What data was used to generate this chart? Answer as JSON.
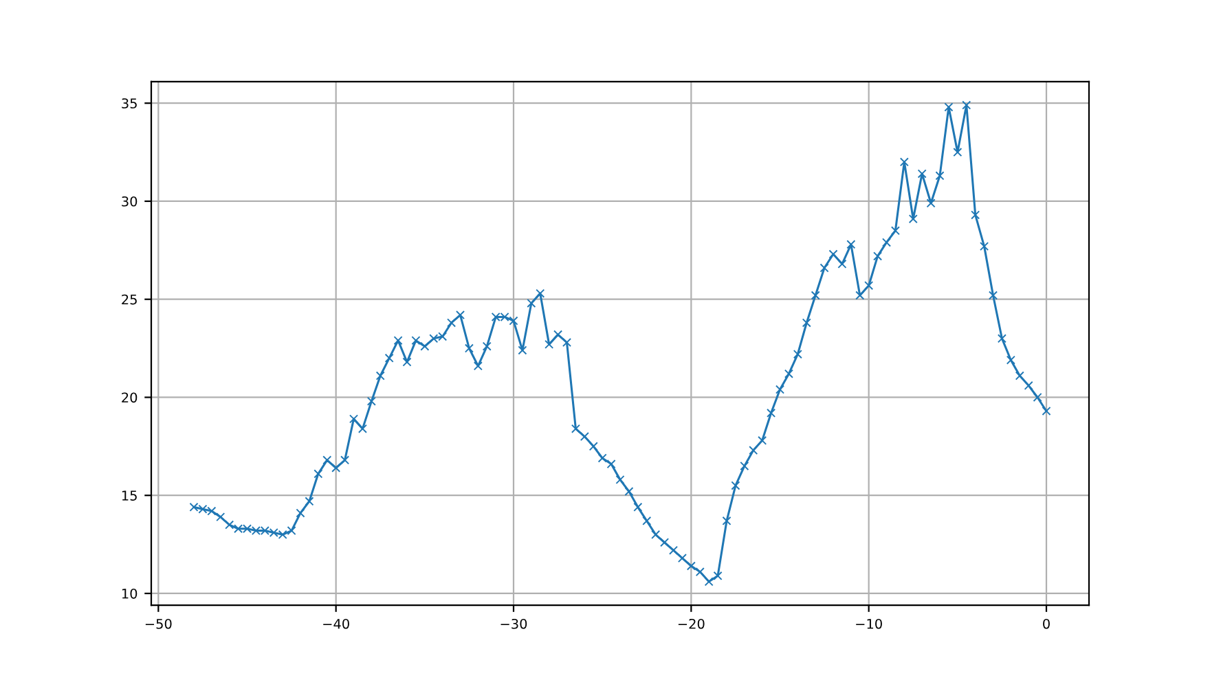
{
  "chart_data": {
    "type": "line",
    "x": [
      -48,
      -47.5,
      -47,
      -46.5,
      -46,
      -45.5,
      -45,
      -44.5,
      -44,
      -43.5,
      -43,
      -42.5,
      -42,
      -41.5,
      -41,
      -40.5,
      -40,
      -39.5,
      -39,
      -38.5,
      -38,
      -37.5,
      -37,
      -36.5,
      -36,
      -35.5,
      -35,
      -34.5,
      -34,
      -33.5,
      -33,
      -32.5,
      -32,
      -31.5,
      -31,
      -30.5,
      -30,
      -29.5,
      -29,
      -28.5,
      -28,
      -27.5,
      -27,
      -26.5,
      -26,
      -25.5,
      -25,
      -24.5,
      -24,
      -23.5,
      -23,
      -22.5,
      -22,
      -21.5,
      -21,
      -20.5,
      -20,
      -19.5,
      -19,
      -18.5,
      -18,
      -17.5,
      -17,
      -16.5,
      -16,
      -15.5,
      -15,
      -14.5,
      -14,
      -13.5,
      -13,
      -12.5,
      -12,
      -11.5,
      -11,
      -10.5,
      -10,
      -9.5,
      -9,
      -8.5,
      -8,
      -7.5,
      -7,
      -6.5,
      -6,
      -5.5,
      -5,
      -4.5,
      -4,
      -3.5,
      -3,
      -2.5,
      -2,
      -1.5,
      -1,
      -0.5,
      0
    ],
    "series": [
      {
        "color": "#1f77b4",
        "values": [
          14.4,
          14.3,
          14.2,
          13.9,
          13.5,
          13.3,
          13.3,
          13.2,
          13.2,
          13.1,
          13.0,
          13.2,
          14.1,
          14.7,
          16.1,
          16.8,
          16.4,
          16.8,
          18.9,
          18.4,
          19.8,
          21.1,
          22.0,
          22.9,
          21.8,
          22.9,
          22.6,
          23.0,
          23.1,
          23.8,
          24.2,
          22.5,
          21.6,
          22.6,
          24.1,
          24.1,
          23.9,
          22.4,
          24.8,
          25.3,
          22.7,
          23.2,
          22.8,
          18.4,
          18.0,
          17.5,
          16.9,
          16.6,
          15.8,
          15.2,
          14.4,
          13.7,
          13.0,
          12.6,
          12.2,
          11.8,
          11.4,
          11.1,
          10.6,
          10.9,
          13.7,
          15.5,
          16.5,
          17.3,
          17.8,
          19.2,
          20.4,
          21.2,
          22.2,
          23.8,
          25.2,
          26.6,
          27.3,
          26.8,
          27.8,
          25.2,
          25.7,
          27.2,
          27.9,
          28.5,
          32.0,
          29.1,
          31.4,
          29.9,
          31.3,
          34.8,
          32.5,
          34.9,
          29.3,
          27.7,
          25.2,
          23.0,
          21.9,
          21.1,
          20.6,
          20.0,
          19.3
        ]
      }
    ],
    "xlim": [
      -50.4,
      2.4
    ],
    "ylim": [
      9.4,
      36.1
    ],
    "xticks": [
      {
        "value": -50,
        "label": "−50"
      },
      {
        "value": -40,
        "label": "−40"
      },
      {
        "value": -30,
        "label": "−30"
      },
      {
        "value": -20,
        "label": "−20"
      },
      {
        "value": -10,
        "label": "−10"
      },
      0
    ],
    "yticks": [
      10,
      15,
      20,
      25,
      30,
      35
    ],
    "grid": true,
    "marker": "cross",
    "line_style": "solid"
  }
}
